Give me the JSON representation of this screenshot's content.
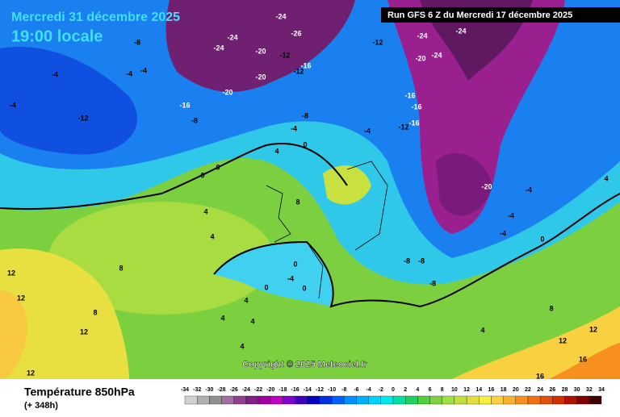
{
  "header": {
    "date": "Mercredi 31 décembre 2025",
    "time": "19:00 locale",
    "run": "Run GFS 6 Z du Mercredi 17 décembre 2025"
  },
  "copyright": "Copyright © 2025 Meteociel.fr",
  "legend": {
    "title": "Température 850hPa",
    "subtitle": "(+ 348h)",
    "ticks": [
      -34,
      -32,
      -30,
      -28,
      -26,
      -24,
      -22,
      -20,
      -18,
      -16,
      -14,
      -12,
      -10,
      -8,
      -6,
      -4,
      -2,
      0,
      2,
      4,
      6,
      8,
      10,
      12,
      14,
      16,
      18,
      20,
      22,
      24,
      26,
      28,
      30,
      32,
      34
    ],
    "colors": [
      "#d0d0d0",
      "#b0b0b0",
      "#909090",
      "#a070a0",
      "#904090",
      "#802080",
      "#a000a0",
      "#c000c0",
      "#8000d0",
      "#4000c0",
      "#0000c0",
      "#0030e0",
      "#0060ff",
      "#0090ff",
      "#00b0ff",
      "#00d0ff",
      "#00e8e8",
      "#00e0a0",
      "#20d060",
      "#50d040",
      "#80d040",
      "#a0e040",
      "#c0e040",
      "#e0e040",
      "#f8f040",
      "#f8d040",
      "#f8b030",
      "#f89020",
      "#f07010",
      "#e05010",
      "#d03000",
      "#b01000",
      "#800000",
      "#400000"
    ]
  },
  "map": {
    "contour_labels": [
      -8,
      -4,
      -4,
      -4,
      -4,
      -12,
      -16,
      -8,
      -20,
      -20,
      -24,
      -24,
      -20,
      -12,
      -16,
      -12,
      -26,
      -24,
      -12,
      -24,
      -24,
      -20,
      -24,
      -16,
      -16,
      -16,
      -12,
      -8,
      -4,
      0,
      -4,
      -20,
      4,
      0,
      0,
      8,
      4,
      4,
      8,
      12,
      12,
      12,
      12,
      8,
      0,
      -4,
      0,
      0,
      -8,
      -8,
      -8,
      4,
      4,
      4,
      4,
      4,
      8,
      12,
      12,
      16,
      16,
      -4,
      -4,
      0,
      -4,
      4
    ]
  }
}
